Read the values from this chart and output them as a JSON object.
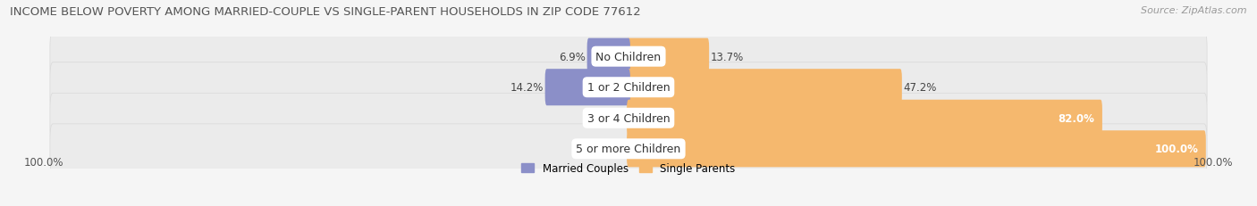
{
  "title": "INCOME BELOW POVERTY AMONG MARRIED-COUPLE VS SINGLE-PARENT HOUSEHOLDS IN ZIP CODE 77612",
  "source": "Source: ZipAtlas.com",
  "categories": [
    "No Children",
    "1 or 2 Children",
    "3 or 4 Children",
    "5 or more Children"
  ],
  "married_couples": [
    6.9,
    14.2,
    0.0,
    0.0
  ],
  "single_parents": [
    13.7,
    47.2,
    82.0,
    100.0
  ],
  "married_color": "#8b8fc8",
  "single_color": "#f5b86e",
  "bar_bg_color": "#ebebeb",
  "bar_bg_outline": "#d8d8d8",
  "married_legend": "Married Couples",
  "single_legend": "Single Parents",
  "x_left_label": "100.0%",
  "x_right_label": "100.0%",
  "title_fontsize": 9.5,
  "source_fontsize": 8,
  "label_fontsize": 8.5,
  "cat_fontsize": 9,
  "bar_height": 0.62,
  "figsize": [
    14.06,
    2.32
  ],
  "dpi": 100,
  "xlim_left": -100,
  "xlim_right": 100,
  "background_color": "#f5f5f5"
}
